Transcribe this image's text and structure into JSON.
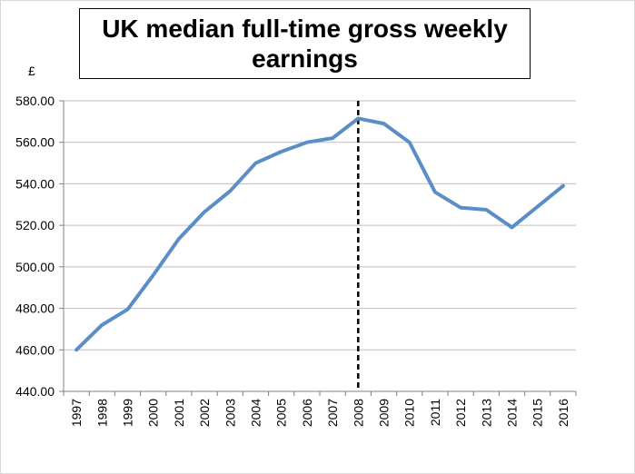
{
  "chart_data": {
    "type": "line",
    "title": "UK median full-time gross weekly earnings",
    "ylabel": "£",
    "xlabel": "",
    "x": [
      "1997",
      "1998",
      "1999",
      "2000",
      "2001",
      "2002",
      "2003",
      "2004",
      "2005",
      "2006",
      "2007",
      "2008",
      "2009",
      "2010",
      "2011",
      "2012",
      "2013",
      "2014",
      "2015",
      "2016"
    ],
    "series": [
      {
        "values": [
          460.0,
          472.0,
          479.5,
          496.0,
          513.5,
          526.5,
          536.5,
          550.0,
          555.5,
          560.0,
          562.0,
          571.5,
          569.0,
          560.0,
          536.0,
          528.5,
          527.5,
          519.0,
          529.0,
          539.0
        ]
      }
    ],
    "yticks": [
      "440.00",
      "460.00",
      "480.00",
      "500.00",
      "520.00",
      "540.00",
      "560.00",
      "580.00"
    ],
    "ylim": [
      440,
      580
    ],
    "grid": true,
    "legend": "none",
    "marker_line": {
      "x": "2008",
      "style": "dashed",
      "color": "#000000"
    },
    "line_color": "#5b8ec7",
    "grid_color": "#bfbfbf"
  }
}
